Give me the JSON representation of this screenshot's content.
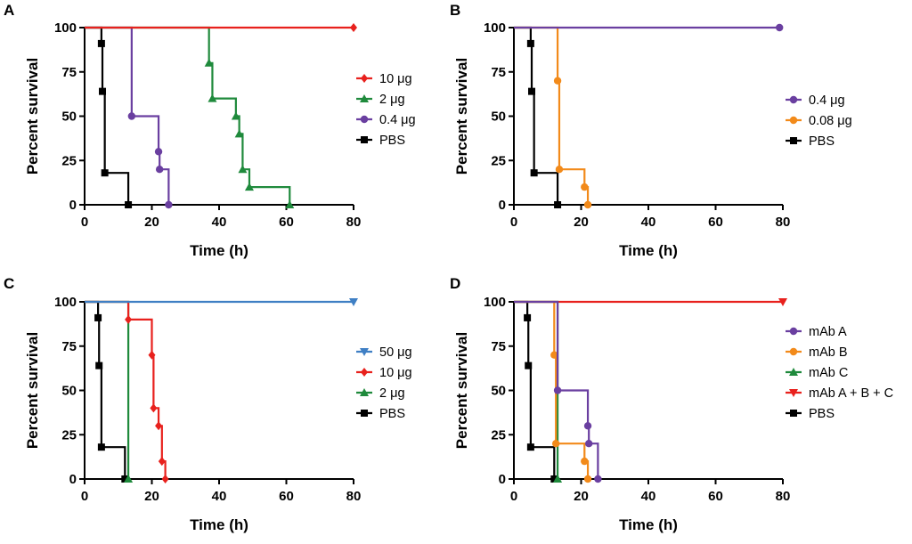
{
  "figure": {
    "chart_data": [
      {
        "panel": "A",
        "type": "line",
        "subtype": "kaplan-meier",
        "xlabel": "Time (h)",
        "ylabel": "Percent survival",
        "xlim": [
          0,
          80
        ],
        "ylim": [
          0,
          100
        ],
        "xticks": [
          0,
          20,
          40,
          60,
          80
        ],
        "yticks": [
          0,
          25,
          50,
          75,
          100
        ],
        "legend_position": "right",
        "series": [
          {
            "name": "10 μg",
            "color": "#e8211d",
            "marker": "diamond",
            "steps": [
              [
                0,
                100
              ],
              [
                80,
                100
              ]
            ],
            "markers": [
              [
                80,
                100
              ]
            ]
          },
          {
            "name": "2 μg",
            "color": "#1f8a3c",
            "marker": "triangle",
            "steps": [
              [
                0,
                100
              ],
              [
                37,
                80
              ],
              [
                38,
                60
              ],
              [
                45,
                50
              ],
              [
                46,
                40
              ],
              [
                47,
                20
              ],
              [
                49,
                10
              ],
              [
                61,
                0
              ]
            ],
            "markers": [
              [
                37,
                80
              ],
              [
                38,
                60
              ],
              [
                45,
                50
              ],
              [
                46,
                40
              ],
              [
                47,
                20
              ],
              [
                49,
                10
              ],
              [
                61,
                0
              ]
            ]
          },
          {
            "name": "0.4 μg",
            "color": "#6a3fa0",
            "marker": "circle",
            "steps": [
              [
                0,
                100
              ],
              [
                14,
                50
              ],
              [
                22,
                30
              ],
              [
                22.3,
                20
              ],
              [
                25,
                0
              ]
            ],
            "markers": [
              [
                14,
                50
              ],
              [
                22,
                30
              ],
              [
                22.3,
                20
              ],
              [
                25,
                0
              ]
            ]
          },
          {
            "name": "PBS",
            "color": "#000000",
            "marker": "square",
            "steps": [
              [
                0,
                100
              ],
              [
                5,
                91
              ],
              [
                5.3,
                64
              ],
              [
                6,
                18
              ],
              [
                13,
                0
              ]
            ],
            "markers": [
              [
                5,
                91
              ],
              [
                5.3,
                64
              ],
              [
                6,
                18
              ],
              [
                13,
                0
              ]
            ]
          }
        ]
      },
      {
        "panel": "B",
        "type": "line",
        "subtype": "kaplan-meier",
        "xlabel": "Time (h)",
        "ylabel": "Percent survival",
        "xlim": [
          0,
          80
        ],
        "ylim": [
          0,
          100
        ],
        "xticks": [
          0,
          20,
          40,
          60,
          80
        ],
        "yticks": [
          0,
          25,
          50,
          75,
          100
        ],
        "legend_position": "right",
        "series": [
          {
            "name": "0.4 μg",
            "color": "#6a3fa0",
            "marker": "circle",
            "steps": [
              [
                0,
                100
              ],
              [
                79,
                100
              ]
            ],
            "markers": [
              [
                79,
                100
              ]
            ]
          },
          {
            "name": "0.08 μg",
            "color": "#f28a1a",
            "marker": "circle",
            "steps": [
              [
                0,
                100
              ],
              [
                13,
                70
              ],
              [
                13.5,
                20
              ],
              [
                21,
                10
              ],
              [
                22,
                0
              ]
            ],
            "markers": [
              [
                13,
                70
              ],
              [
                13.5,
                20
              ],
              [
                21,
                10
              ],
              [
                22,
                0
              ]
            ]
          },
          {
            "name": "PBS",
            "color": "#000000",
            "marker": "square",
            "steps": [
              [
                0,
                100
              ],
              [
                5,
                91
              ],
              [
                5.3,
                64
              ],
              [
                6,
                18
              ],
              [
                13,
                0
              ]
            ],
            "markers": [
              [
                5,
                91
              ],
              [
                5.3,
                64
              ],
              [
                6,
                18
              ],
              [
                13,
                0
              ]
            ]
          }
        ]
      },
      {
        "panel": "C",
        "type": "line",
        "subtype": "kaplan-meier",
        "xlabel": "Time (h)",
        "ylabel": "Percent survival",
        "xlim": [
          0,
          80
        ],
        "ylim": [
          0,
          100
        ],
        "xticks": [
          0,
          20,
          40,
          60,
          80
        ],
        "yticks": [
          0,
          25,
          50,
          75,
          100
        ],
        "legend_position": "right",
        "series": [
          {
            "name": "50 μg",
            "color": "#3f7fc4",
            "marker": "triangle-down",
            "steps": [
              [
                0,
                100
              ],
              [
                80,
                100
              ]
            ],
            "markers": [
              [
                80,
                100
              ]
            ]
          },
          {
            "name": "10 μg",
            "color": "#e8211d",
            "marker": "diamond",
            "steps": [
              [
                0,
                100
              ],
              [
                13,
                90
              ],
              [
                20,
                70
              ],
              [
                20.5,
                40
              ],
              [
                22,
                30
              ],
              [
                23,
                10
              ],
              [
                24,
                0
              ]
            ],
            "markers": [
              [
                13,
                90
              ],
              [
                20,
                70
              ],
              [
                20.5,
                40
              ],
              [
                22,
                30
              ],
              [
                23,
                10
              ],
              [
                24,
                0
              ]
            ]
          },
          {
            "name": "2 μg",
            "color": "#1f8a3c",
            "marker": "triangle",
            "steps": [
              [
                0,
                100
              ],
              [
                13,
                0
              ]
            ],
            "markers": [
              [
                13,
                0
              ]
            ]
          },
          {
            "name": "PBS",
            "color": "#000000",
            "marker": "square",
            "steps": [
              [
                0,
                100
              ],
              [
                4,
                91
              ],
              [
                4.3,
                64
              ],
              [
                5,
                18
              ],
              [
                12,
                0
              ]
            ],
            "markers": [
              [
                4,
                91
              ],
              [
                4.3,
                64
              ],
              [
                5,
                18
              ],
              [
                12,
                0
              ]
            ]
          }
        ]
      },
      {
        "panel": "D",
        "type": "line",
        "subtype": "kaplan-meier",
        "xlabel": "Time (h)",
        "ylabel": "Percent survival",
        "xlim": [
          0,
          80
        ],
        "ylim": [
          0,
          100
        ],
        "xticks": [
          0,
          20,
          40,
          60,
          80
        ],
        "yticks": [
          0,
          25,
          50,
          75,
          100
        ],
        "legend_position": "right",
        "series": [
          {
            "name": "mAb A",
            "color": "#6a3fa0",
            "marker": "circle",
            "steps": [
              [
                0,
                100
              ],
              [
                13,
                50
              ],
              [
                22,
                30
              ],
              [
                22.3,
                20
              ],
              [
                25,
                0
              ]
            ],
            "markers": [
              [
                13,
                50
              ],
              [
                22,
                30
              ],
              [
                22.3,
                20
              ],
              [
                25,
                0
              ]
            ]
          },
          {
            "name": "mAb B",
            "color": "#f28a1a",
            "marker": "circle",
            "steps": [
              [
                0,
                100
              ],
              [
                12,
                70
              ],
              [
                12.5,
                20
              ],
              [
                21,
                10
              ],
              [
                22,
                0
              ]
            ],
            "markers": [
              [
                12,
                70
              ],
              [
                12.5,
                20
              ],
              [
                21,
                10
              ],
              [
                22,
                0
              ]
            ]
          },
          {
            "name": "mAb C",
            "color": "#1f8a3c",
            "marker": "triangle",
            "steps": [
              [
                0,
                100
              ],
              [
                13,
                0
              ]
            ],
            "markers": [
              [
                13,
                0
              ]
            ]
          },
          {
            "name": "mAb A + B + C",
            "color": "#e8211d",
            "marker": "triangle-down",
            "steps": [
              [
                0,
                100
              ],
              [
                80,
                100
              ]
            ],
            "markers": [
              [
                80,
                100
              ]
            ]
          },
          {
            "name": "PBS",
            "color": "#000000",
            "marker": "square",
            "steps": [
              [
                0,
                100
              ],
              [
                4,
                91
              ],
              [
                4.3,
                64
              ],
              [
                5,
                18
              ],
              [
                12,
                0
              ]
            ],
            "markers": [
              [
                4,
                91
              ],
              [
                4.3,
                64
              ],
              [
                5,
                18
              ],
              [
                12,
                0
              ]
            ]
          }
        ]
      }
    ]
  }
}
